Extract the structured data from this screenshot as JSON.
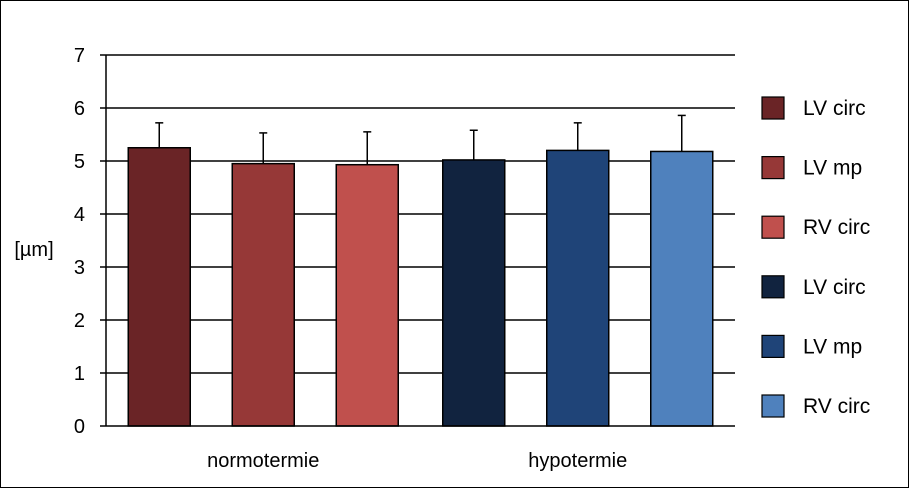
{
  "chart_data": {
    "type": "bar",
    "title": "",
    "xlabel": "",
    "ylabel": "[µm]",
    "ylim": [
      0,
      7
    ],
    "yticks": [
      0,
      1,
      2,
      3,
      4,
      5,
      6,
      7
    ],
    "grid": true,
    "legend_position": "right",
    "categories": [
      "normotermie",
      "hypotermie"
    ],
    "series": [
      {
        "name": "LV circ",
        "group": "normotermie",
        "value": 5.25,
        "error": 0.47,
        "color": "#6a2426"
      },
      {
        "name": "LV mp",
        "group": "normotermie",
        "value": 4.95,
        "error": 0.58,
        "color": "#963837"
      },
      {
        "name": "RV circ",
        "group": "normotermie",
        "value": 4.93,
        "error": 0.62,
        "color": "#c0504d"
      },
      {
        "name": "LV circ",
        "group": "hypotermie",
        "value": 5.02,
        "error": 0.56,
        "color": "#11233f"
      },
      {
        "name": "LV mp",
        "group": "hypotermie",
        "value": 5.2,
        "error": 0.52,
        "color": "#1f4478"
      },
      {
        "name": "RV circ",
        "group": "hypotermie",
        "value": 5.18,
        "error": 0.68,
        "color": "#4f81bd"
      }
    ]
  }
}
